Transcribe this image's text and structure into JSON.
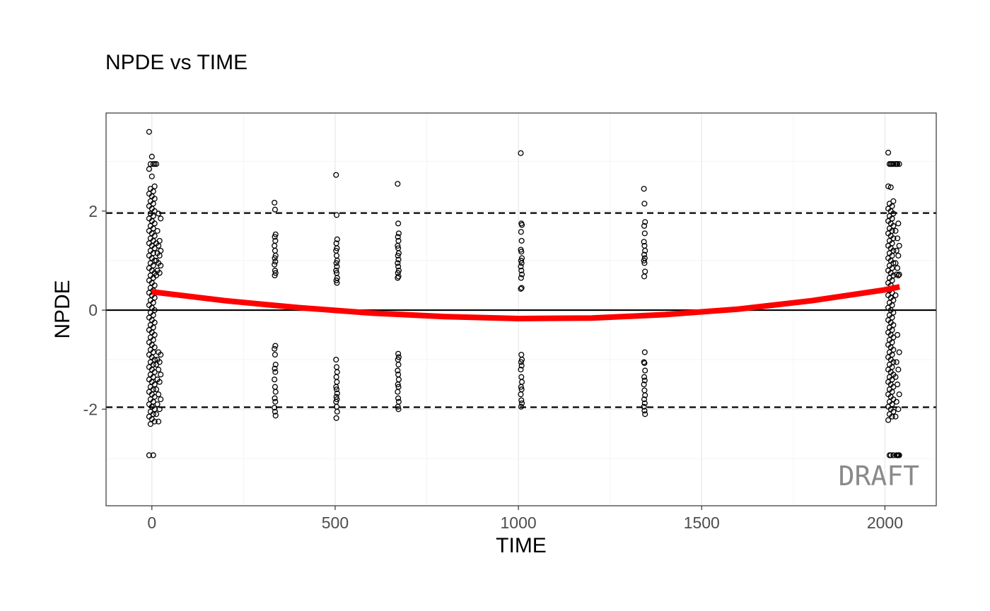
{
  "chart_data": {
    "type": "scatter",
    "title": "NPDE vs TIME",
    "xlabel": "TIME",
    "ylabel": "NPDE",
    "xlim": [
      -125,
      2140
    ],
    "ylim": [
      -3.95,
      3.98
    ],
    "x_ticks": [
      0,
      500,
      1000,
      1500,
      2000
    ],
    "x_tick_labels": [
      "0",
      "500",
      "1000",
      "1500",
      "2000"
    ],
    "y_ticks": [
      -2,
      0,
      2
    ],
    "y_tick_labels": [
      "-2",
      "0",
      "2"
    ],
    "grid": true,
    "reference_lines": [
      {
        "y": 0,
        "style": "solid",
        "color": "#000000"
      },
      {
        "y": 1.96,
        "style": "dashed",
        "color": "#000000"
      },
      {
        "y": -1.96,
        "style": "dashed",
        "color": "#000000"
      }
    ],
    "watermark": "DRAFT",
    "smooth": {
      "color": "#ff0000",
      "x": [
        0,
        200,
        400,
        600,
        800,
        1000,
        1200,
        1400,
        1600,
        1800,
        2000,
        2040
      ],
      "y": [
        0.37,
        0.19,
        0.05,
        -0.06,
        -0.13,
        -0.17,
        -0.16,
        -0.09,
        0.02,
        0.19,
        0.41,
        0.47
      ]
    },
    "point_groups": [
      {
        "x": 0,
        "spread": 15,
        "y": [
          3.6,
          3.1,
          2.95,
          2.95,
          2.95,
          2.85,
          2.7,
          2.5,
          2.45,
          2.4,
          2.35,
          2.3,
          2.25,
          2.2,
          2.15,
          2.1,
          2.05,
          2.0,
          1.95,
          1.9,
          1.85,
          1.8,
          1.75,
          1.7,
          1.65,
          1.6,
          1.55,
          1.5,
          1.45,
          1.4,
          1.35,
          1.3,
          1.25,
          1.2,
          1.15,
          1.1,
          1.05,
          1.0,
          0.95,
          0.9,
          0.85,
          0.8,
          0.75,
          0.7,
          0.65,
          0.6,
          0.55,
          0.5,
          0.45,
          0.4,
          0.35,
          0.3,
          0.25,
          0.2,
          0.15,
          0.1,
          0.05,
          0.0,
          -0.05,
          -0.1,
          -0.15,
          -0.2,
          -0.25,
          -0.3,
          -0.35,
          -0.4,
          -0.45,
          -0.5,
          -0.55,
          -0.6,
          -0.65,
          -0.7,
          -0.75,
          -0.8,
          -0.85,
          -0.9,
          -0.95,
          -1.0,
          -1.05,
          -1.1,
          -1.15,
          -1.2,
          -1.25,
          -1.3,
          -1.35,
          -1.4,
          -1.45,
          -1.5,
          -1.55,
          -1.6,
          -1.65,
          -1.7,
          -1.75,
          -1.8,
          -1.85,
          -1.9,
          -1.95,
          -2.0,
          -2.05,
          -2.1,
          -2.15,
          -2.2,
          -2.25,
          -2.3,
          -2.93,
          -2.93
        ]
      },
      {
        "x": 18,
        "spread": 12,
        "y": [
          2.95,
          1.95,
          1.85,
          1.6,
          1.4,
          1.35,
          1.3,
          1.2,
          1.15,
          1.1,
          1.0,
          0.95,
          0.9,
          0.8,
          0.75,
          0.7,
          -0.85,
          -0.9,
          -1.0,
          -1.05,
          -1.1,
          -1.2,
          -1.3,
          -1.4,
          -1.45,
          -1.6,
          -1.7,
          -1.8,
          -1.9,
          -2.0,
          -2.1,
          -2.25
        ]
      },
      {
        "x": 336,
        "spread": 3,
        "y": [
          2.17,
          2.03,
          1.53,
          1.48,
          1.4,
          1.3,
          1.2,
          1.1,
          1.05,
          0.98,
          0.92,
          0.8,
          0.75,
          0.7,
          -0.72,
          -0.78,
          -0.9,
          -1.1,
          -1.18,
          -1.25,
          -1.4,
          -1.55,
          -1.65,
          -1.78,
          -1.85,
          -1.97,
          -2.05,
          -2.13
        ]
      },
      {
        "x": 504,
        "spread": 3,
        "y": [
          2.73,
          1.92,
          1.43,
          1.35,
          1.25,
          1.2,
          1.1,
          1.0,
          0.95,
          0.88,
          0.8,
          0.75,
          0.65,
          0.6,
          0.55,
          -1.0,
          -1.15,
          -1.25,
          -1.35,
          -1.45,
          -1.55,
          -1.6,
          -1.68,
          -1.75,
          -1.8,
          -1.85,
          -1.95,
          -2.05,
          -2.18
        ]
      },
      {
        "x": 672,
        "spread": 3,
        "y": [
          2.55,
          1.75,
          1.55,
          1.48,
          1.4,
          1.3,
          1.25,
          1.15,
          1.1,
          1.02,
          0.95,
          0.88,
          0.8,
          0.75,
          0.68,
          0.65,
          -0.88,
          -0.95,
          -1.0,
          -1.1,
          -1.22,
          -1.3,
          -1.4,
          -1.5,
          -1.55,
          -1.65,
          -1.78,
          -1.85,
          -1.95,
          -2.0
        ]
      },
      {
        "x": 1008,
        "spread": 3,
        "y": [
          3.17,
          1.75,
          1.72,
          1.58,
          1.4,
          1.22,
          1.18,
          1.05,
          1.0,
          0.95,
          0.88,
          0.8,
          0.72,
          0.65,
          0.45,
          0.43,
          -0.9,
          -1.0,
          -1.05,
          -1.12,
          -1.2,
          -1.35,
          -1.45,
          -1.55,
          -1.6,
          -1.7,
          -1.82,
          -1.88,
          -1.95
        ]
      },
      {
        "x": 1344,
        "spread": 3,
        "y": [
          2.45,
          2.15,
          1.78,
          1.7,
          1.55,
          1.38,
          1.3,
          1.2,
          1.12,
          1.05,
          1.0,
          0.95,
          0.78,
          0.68,
          -0.85,
          -1.05,
          -1.07,
          -1.22,
          -1.35,
          -1.42,
          -1.5,
          -1.62,
          -1.72,
          -1.8,
          -1.88,
          -1.95,
          -2.03,
          -2.1
        ]
      },
      {
        "x": 2016,
        "spread": 14,
        "y": [
          3.18,
          2.95,
          2.95,
          2.95,
          2.95,
          2.5,
          2.48,
          2.2,
          2.15,
          2.1,
          2.05,
          2.0,
          1.95,
          1.9,
          1.85,
          1.8,
          1.75,
          1.7,
          1.65,
          1.6,
          1.55,
          1.5,
          1.45,
          1.4,
          1.35,
          1.3,
          1.25,
          1.2,
          1.15,
          1.1,
          1.05,
          1.0,
          0.95,
          0.9,
          0.85,
          0.8,
          0.75,
          0.7,
          0.65,
          0.6,
          0.55,
          0.5,
          0.45,
          0.4,
          0.35,
          0.3,
          0.25,
          0.2,
          0.15,
          0.1,
          0.05,
          0.0,
          -0.05,
          -0.1,
          -0.15,
          -0.2,
          -0.25,
          -0.3,
          -0.35,
          -0.4,
          -0.45,
          -0.5,
          -0.55,
          -0.6,
          -0.65,
          -0.7,
          -0.75,
          -0.8,
          -0.85,
          -0.9,
          -0.95,
          -1.0,
          -1.05,
          -1.1,
          -1.15,
          -1.2,
          -1.25,
          -1.3,
          -1.35,
          -1.4,
          -1.45,
          -1.5,
          -1.55,
          -1.6,
          -1.65,
          -1.7,
          -1.75,
          -1.8,
          -1.85,
          -1.9,
          -1.95,
          -2.0,
          -2.05,
          -2.1,
          -2.15,
          -2.22,
          -2.93,
          -2.93,
          -2.93
        ]
      },
      {
        "x": 2034,
        "spread": 10,
        "y": [
          2.95,
          2.95,
          2.95,
          2.95,
          1.75,
          1.6,
          1.45,
          1.3,
          1.2,
          1.1,
          0.95,
          0.85,
          0.72,
          0.72,
          0.7,
          0.3,
          -0.5,
          -0.85,
          -1.05,
          -1.2,
          -1.35,
          -1.5,
          -1.7,
          -1.85,
          -2.0,
          -2.15,
          -2.93,
          -2.93,
          -2.93,
          -2.93
        ]
      }
    ]
  }
}
